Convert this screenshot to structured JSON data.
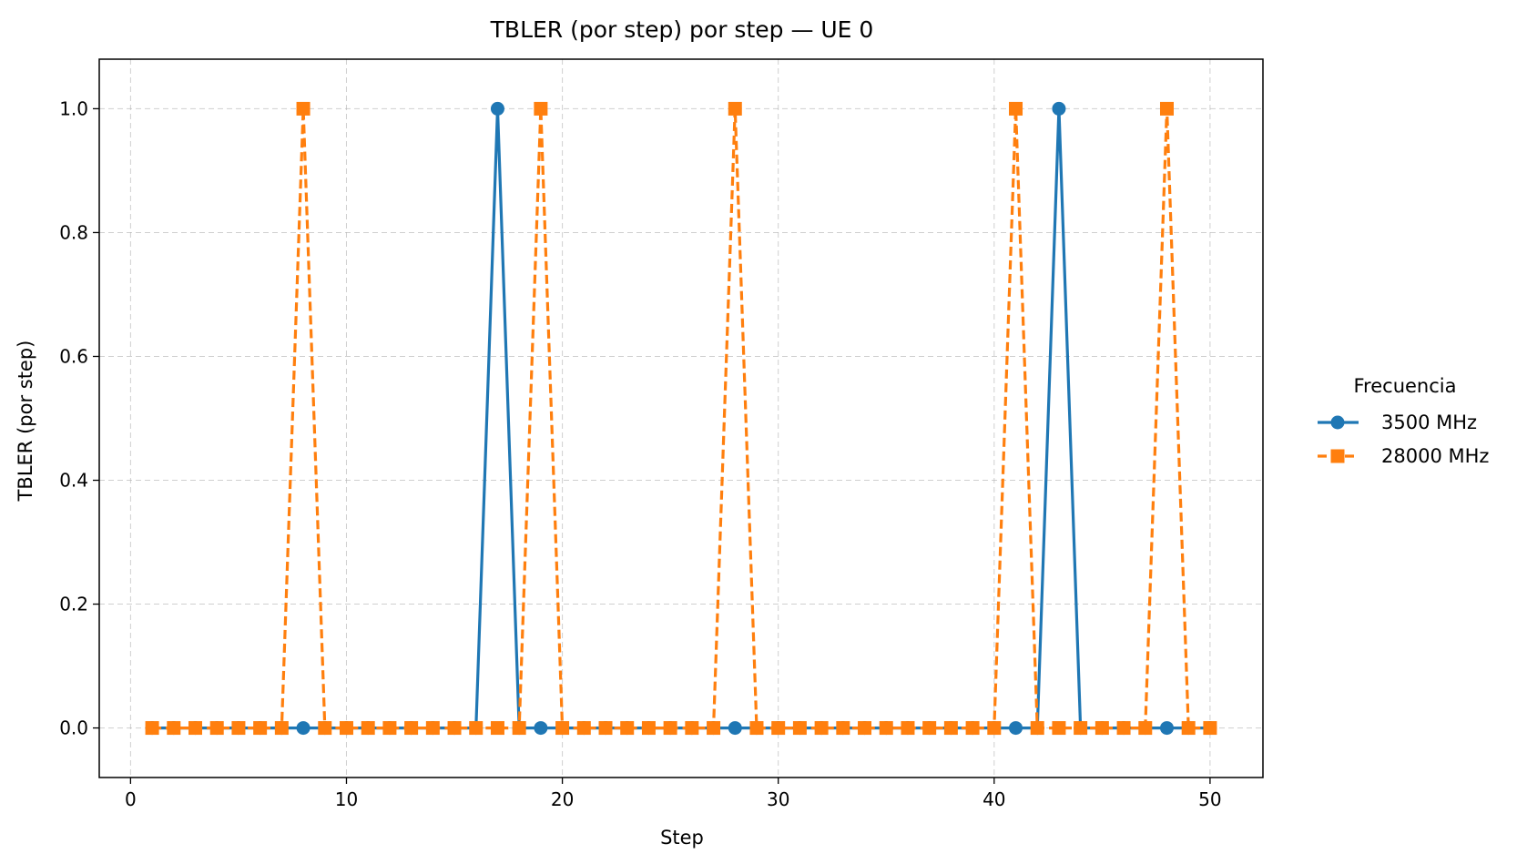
{
  "chart_data": {
    "type": "line",
    "title": "TBLER (por step) por step — UE 0",
    "xlabel": "Step",
    "ylabel": "TBLER (por step)",
    "xlim": [
      -1.45,
      52.45
    ],
    "ylim": [
      -0.08,
      1.08
    ],
    "xticks": [
      0,
      10,
      20,
      30,
      40,
      50
    ],
    "yticks": [
      0.0,
      0.2,
      0.4,
      0.6,
      0.8,
      1.0
    ],
    "xtick_labels": [
      "0",
      "10",
      "20",
      "30",
      "40",
      "50"
    ],
    "ytick_labels": [
      "0.0",
      "0.2",
      "0.4",
      "0.6",
      "0.8",
      "1.0"
    ],
    "grid": true,
    "legend": {
      "title": "Frecuencia",
      "placement": "outside-right"
    },
    "x": [
      1,
      2,
      3,
      4,
      5,
      6,
      7,
      8,
      9,
      10,
      11,
      12,
      13,
      14,
      15,
      16,
      17,
      18,
      19,
      20,
      21,
      22,
      23,
      24,
      25,
      26,
      27,
      28,
      29,
      30,
      31,
      32,
      33,
      34,
      35,
      36,
      37,
      38,
      39,
      40,
      41,
      42,
      43,
      44,
      45,
      46,
      47,
      48,
      49,
      50
    ],
    "series": [
      {
        "name": "3500 MHz",
        "color": "#1f77b4",
        "marker": "circle",
        "linestyle": "solid",
        "values": [
          0,
          0,
          0,
          0,
          0,
          0,
          0,
          0,
          0,
          0,
          0,
          0,
          0,
          0,
          0,
          0,
          1,
          0,
          0,
          0,
          0,
          0,
          0,
          0,
          0,
          0,
          0,
          0,
          0,
          0,
          0,
          0,
          0,
          0,
          0,
          0,
          0,
          0,
          0,
          0,
          0,
          0,
          1,
          0,
          0,
          0,
          0,
          0,
          0,
          0
        ]
      },
      {
        "name": "28000 MHz",
        "color": "#ff7f0e",
        "marker": "square",
        "linestyle": "dashed",
        "values": [
          0,
          0,
          0,
          0,
          0,
          0,
          0,
          1,
          0,
          0,
          0,
          0,
          0,
          0,
          0,
          0,
          0,
          0,
          1,
          0,
          0,
          0,
          0,
          0,
          0,
          0,
          0,
          1,
          0,
          0,
          0,
          0,
          0,
          0,
          0,
          0,
          0,
          0,
          0,
          0,
          1,
          0,
          0,
          0,
          0,
          0,
          0,
          1,
          0,
          0
        ]
      }
    ]
  }
}
